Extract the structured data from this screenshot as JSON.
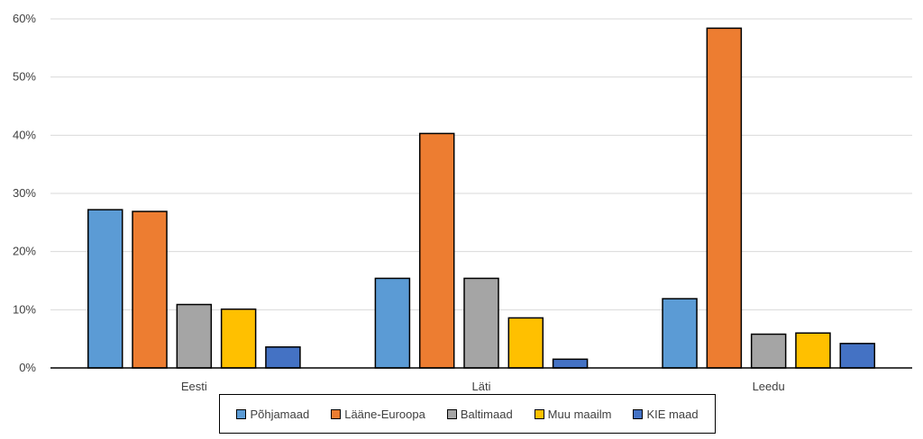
{
  "chart_data": {
    "type": "bar",
    "categories": [
      "Eesti",
      "Läti",
      "Leedu"
    ],
    "series": [
      {
        "name": "Põhjamaad",
        "color": "#5B9BD5",
        "values": [
          27.2,
          15.4,
          11.9
        ]
      },
      {
        "name": "Lääne-Euroopa",
        "color": "#ED7D31",
        "values": [
          26.9,
          40.3,
          58.4
        ]
      },
      {
        "name": "Baltimaad",
        "color": "#A5A5A5",
        "values": [
          10.9,
          15.4,
          5.8
        ]
      },
      {
        "name": "Muu maailm",
        "color": "#FFC000",
        "values": [
          10.1,
          8.6,
          6.0
        ]
      },
      {
        "name": "KIE maad",
        "color": "#4472C4",
        "values": [
          3.6,
          1.5,
          4.2
        ]
      }
    ],
    "y_ticks": [
      "0%",
      "10%",
      "20%",
      "30%",
      "40%",
      "50%",
      "60%"
    ],
    "ylim": [
      0,
      60
    ],
    "grid": true,
    "legend_position": "bottom"
  }
}
